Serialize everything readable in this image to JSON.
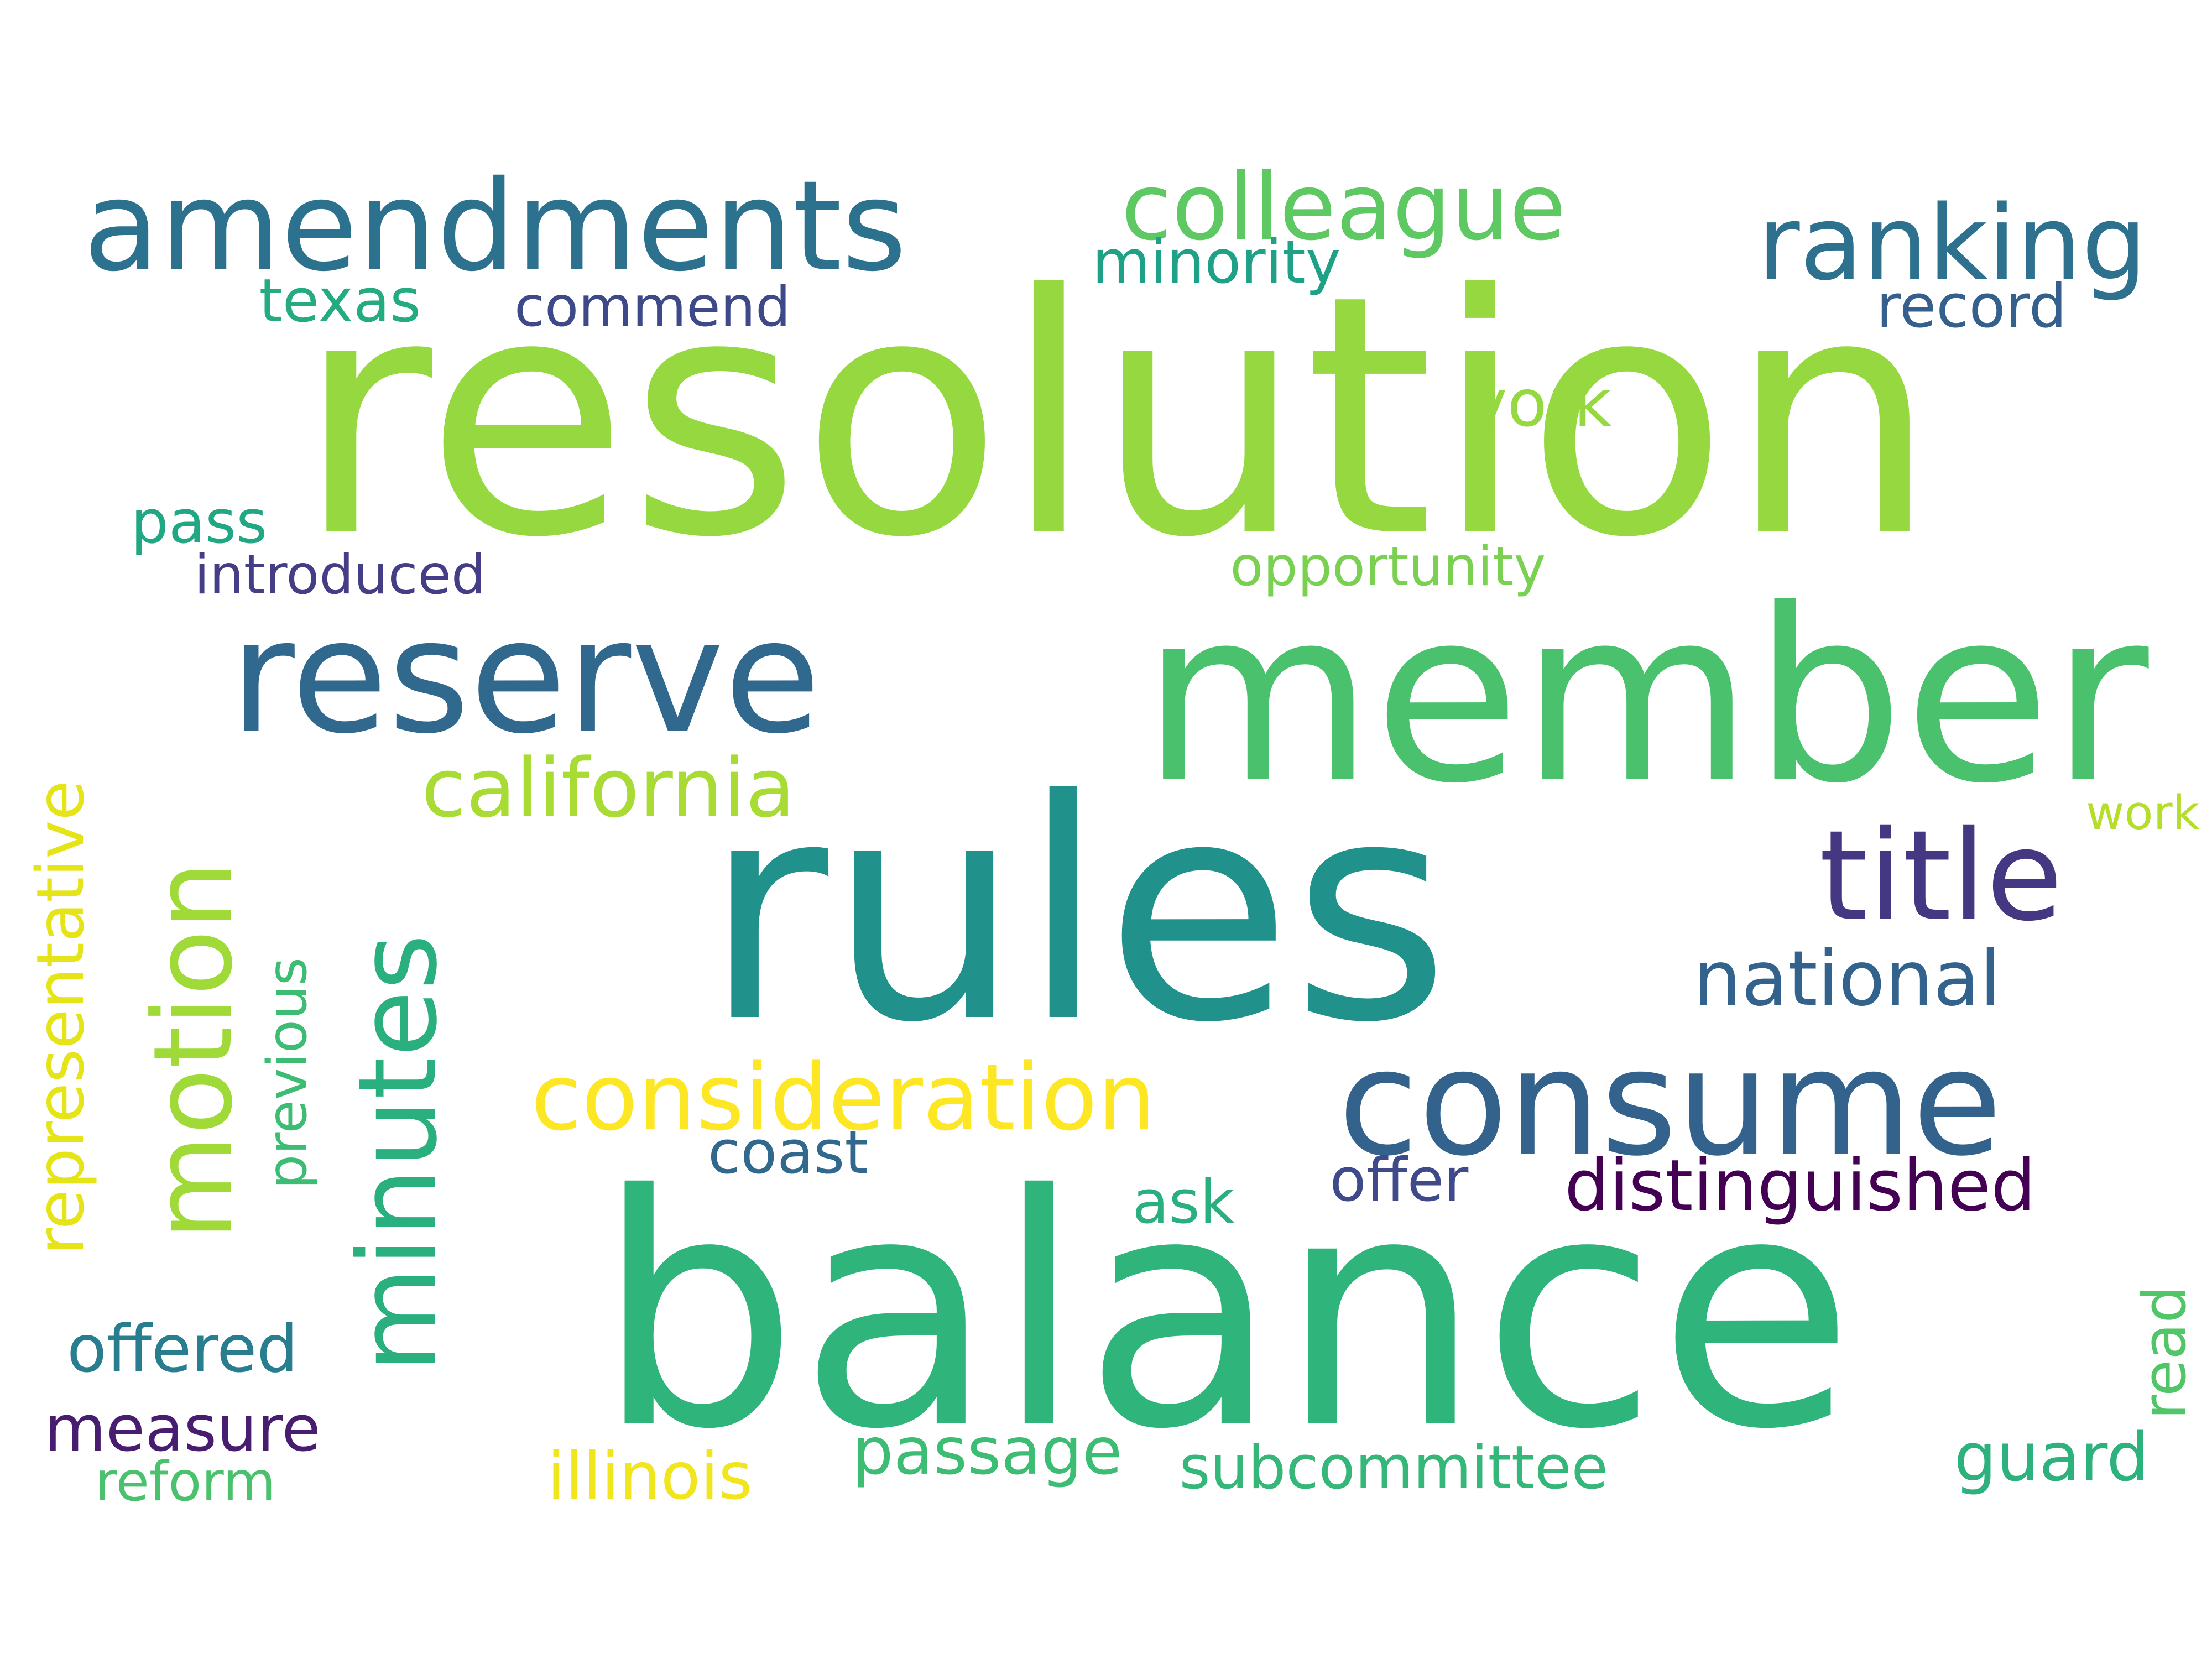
{
  "words": [
    {
      "id": "resolution",
      "text": "resolution",
      "color": "#95d840"
    },
    {
      "id": "balance",
      "text": "balance",
      "color": "#2fb47c"
    },
    {
      "id": "rules",
      "text": "rules",
      "color": "#21918c"
    },
    {
      "id": "member",
      "text": "member",
      "color": "#4ac16d"
    },
    {
      "id": "reserve",
      "text": "reserve",
      "color": "#31688e"
    },
    {
      "id": "consume",
      "text": "consume",
      "color": "#33638d"
    },
    {
      "id": "amendments",
      "text": "amendments",
      "color": "#2c728e"
    },
    {
      "id": "motion",
      "text": "motion",
      "color": "#a0da39"
    },
    {
      "id": "minutes",
      "text": "minutes",
      "color": "#2ab07f"
    },
    {
      "id": "title",
      "text": "title",
      "color": "#453781"
    },
    {
      "id": "ranking",
      "text": "ranking",
      "color": "#2d718e"
    },
    {
      "id": "colleague",
      "text": "colleague",
      "color": "#5ec962"
    },
    {
      "id": "consideration",
      "text": "consideration",
      "color": "#fde725"
    },
    {
      "id": "california",
      "text": "california",
      "color": "#a8db34"
    },
    {
      "id": "national",
      "text": "national",
      "color": "#33638d"
    },
    {
      "id": "representative",
      "text": "representative",
      "color": "#e5e419"
    },
    {
      "id": "previous",
      "text": "previous",
      "color": "#3dbc74"
    },
    {
      "id": "distinguished",
      "text": "distinguished",
      "color": "#440154"
    },
    {
      "id": "subcommittee",
      "text": "subcommittee",
      "color": "#35b779"
    },
    {
      "id": "minority",
      "text": "minority",
      "color": "#1fa187"
    },
    {
      "id": "commend",
      "text": "commend",
      "color": "#3e4989"
    },
    {
      "id": "texas",
      "text": "texas",
      "color": "#25ab82"
    },
    {
      "id": "record",
      "text": "record",
      "color": "#355f8d"
    },
    {
      "id": "york",
      "text": "york",
      "color": "#95d840"
    },
    {
      "id": "pass",
      "text": "pass",
      "color": "#22a785"
    },
    {
      "id": "introduced",
      "text": "introduced",
      "color": "#433e85"
    },
    {
      "id": "opportunity",
      "text": "opportunity",
      "color": "#7ad151"
    },
    {
      "id": "work",
      "text": "work",
      "color": "#b5de2b"
    },
    {
      "id": "coast",
      "text": "coast",
      "color": "#31688e"
    },
    {
      "id": "ask",
      "text": "ask",
      "color": "#2ab07f"
    },
    {
      "id": "offer",
      "text": "offer",
      "color": "#3e4a89"
    },
    {
      "id": "offered",
      "text": "offered",
      "color": "#287d8e"
    },
    {
      "id": "measure",
      "text": "measure",
      "color": "#481d6f"
    },
    {
      "id": "reform",
      "text": "reform",
      "color": "#4ac16d"
    },
    {
      "id": "illinois",
      "text": "illinois",
      "color": "#f1e51d"
    },
    {
      "id": "passage",
      "text": "passage",
      "color": "#3dbc74"
    },
    {
      "id": "guard",
      "text": "guard",
      "color": "#2db27d"
    },
    {
      "id": "read",
      "text": "read",
      "color": "#52c569"
    }
  ]
}
